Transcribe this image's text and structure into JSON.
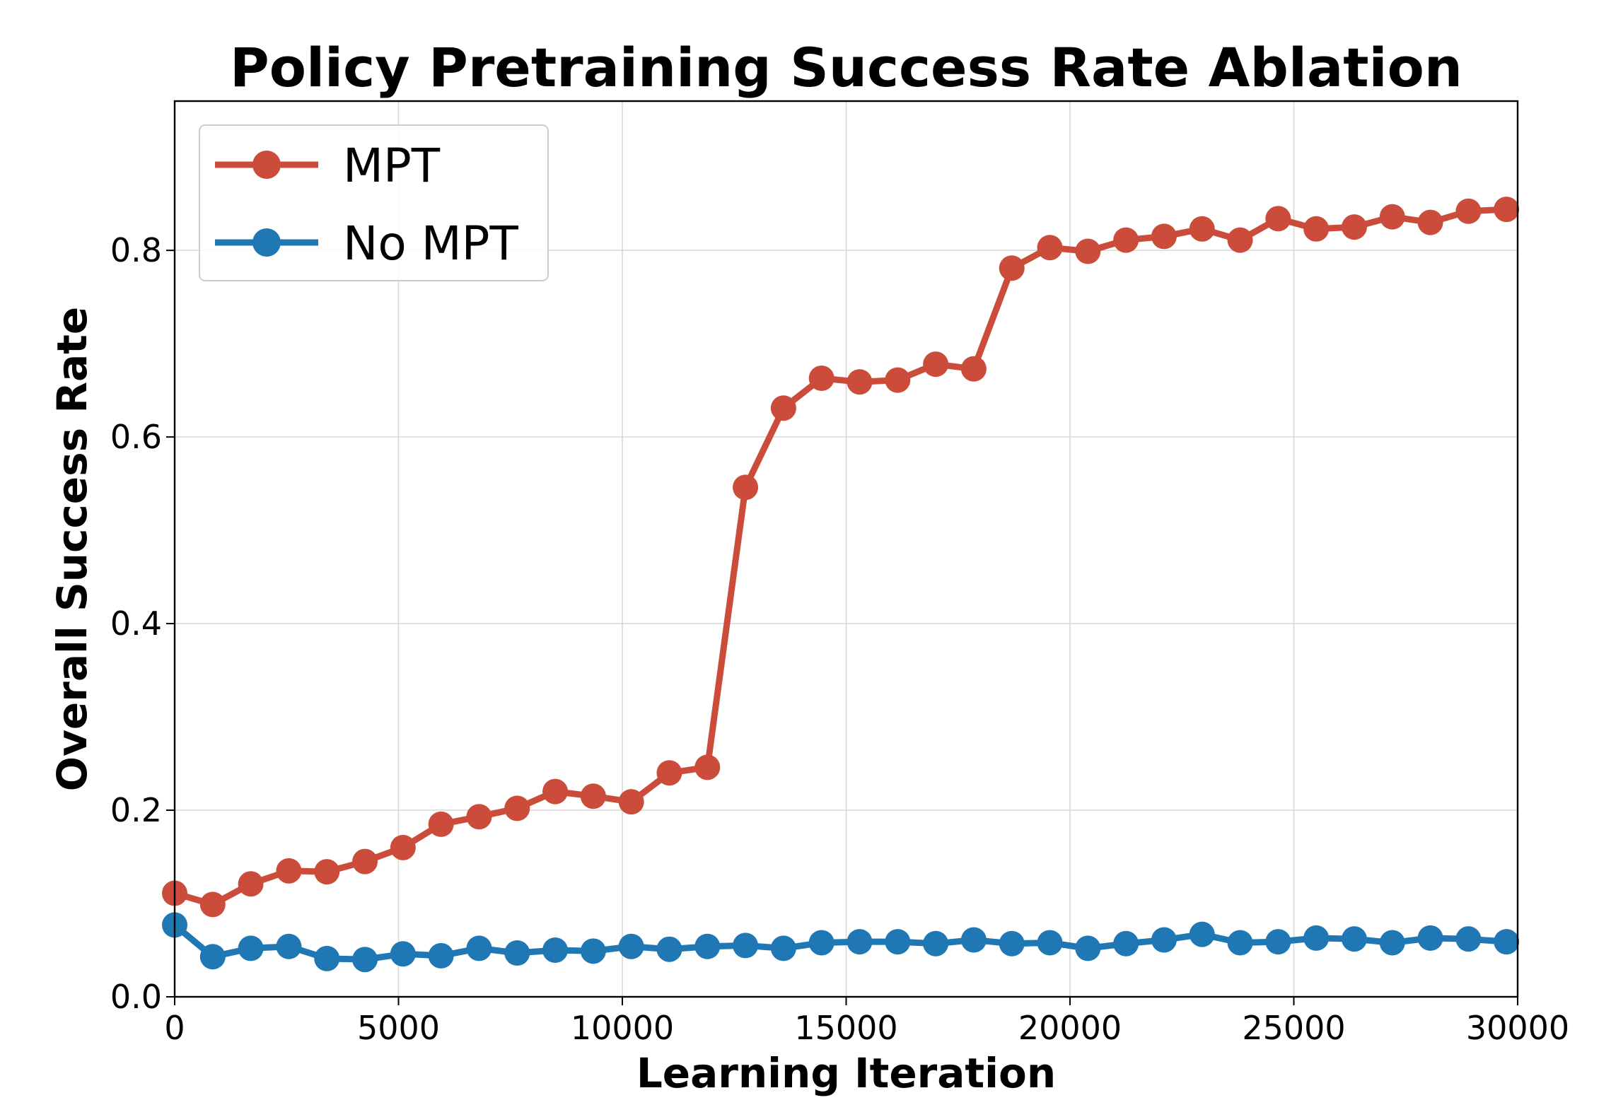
{
  "chart_data": {
    "type": "line",
    "title": "Policy Pretraining Success Rate Ablation",
    "xlabel": "Learning Iteration",
    "ylabel": "Overall Success Rate",
    "xlim": [
      0,
      30000
    ],
    "ylim": [
      0,
      0.96
    ],
    "xticks": [
      0,
      5000,
      10000,
      15000,
      20000,
      25000,
      30000
    ],
    "yticks": [
      0.0,
      0.2,
      0.4,
      0.6,
      0.8
    ],
    "xtick_labels": [
      "0",
      "5000",
      "10000",
      "15000",
      "20000",
      "25000",
      "30000"
    ],
    "ytick_labels": [
      "0.0",
      "0.2",
      "0.4",
      "0.6",
      "0.8"
    ],
    "grid": true,
    "legend_position": "top-left",
    "x": [
      0,
      850,
      1700,
      2550,
      3400,
      4250,
      5100,
      5950,
      6800,
      7650,
      8500,
      9350,
      10200,
      11050,
      11900,
      12750,
      13600,
      14450,
      15300,
      16150,
      17000,
      17850,
      18700,
      19550,
      20400,
      21250,
      22100,
      22950,
      23800,
      24650,
      25500,
      26350,
      27200,
      28050,
      28900,
      29750
    ],
    "series": [
      {
        "name": "MPT",
        "color": "#cb4c3a",
        "values": [
          0.111,
          0.099,
          0.121,
          0.135,
          0.134,
          0.145,
          0.16,
          0.185,
          0.193,
          0.202,
          0.22,
          0.215,
          0.209,
          0.24,
          0.246,
          0.546,
          0.631,
          0.663,
          0.659,
          0.661,
          0.678,
          0.673,
          0.781,
          0.803,
          0.799,
          0.811,
          0.815,
          0.823,
          0.811,
          0.834,
          0.823,
          0.825,
          0.836,
          0.83,
          0.842,
          0.844
        ]
      },
      {
        "name": "No MPT",
        "color": "#1f77b4",
        "values": [
          0.077,
          0.043,
          0.052,
          0.054,
          0.041,
          0.04,
          0.046,
          0.044,
          0.052,
          0.047,
          0.05,
          0.049,
          0.054,
          0.051,
          0.054,
          0.055,
          0.052,
          0.058,
          0.059,
          0.059,
          0.057,
          0.061,
          0.057,
          0.058,
          0.052,
          0.057,
          0.061,
          0.067,
          0.058,
          0.059,
          0.063,
          0.062,
          0.058,
          0.063,
          0.062,
          0.059
        ]
      }
    ]
  }
}
